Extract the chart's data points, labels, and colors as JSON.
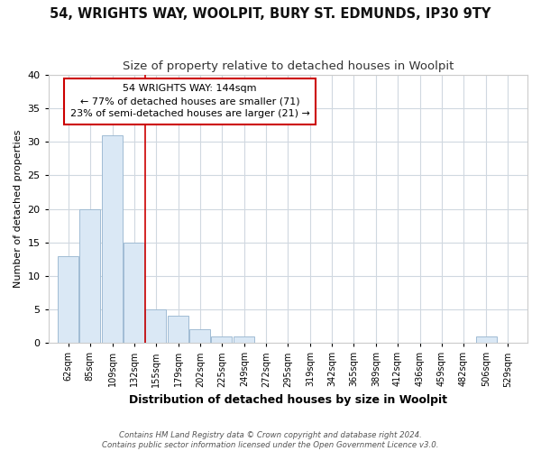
{
  "title": "54, WRIGHTS WAY, WOOLPIT, BURY ST. EDMUNDS, IP30 9TY",
  "subtitle": "Size of property relative to detached houses in Woolpit",
  "xlabel": "Distribution of detached houses by size in Woolpit",
  "ylabel": "Number of detached properties",
  "footer_line1": "Contains HM Land Registry data © Crown copyright and database right 2024.",
  "footer_line2": "Contains public sector information licensed under the Open Government Licence v3.0.",
  "bins": [
    62,
    85,
    109,
    132,
    155,
    179,
    202,
    225,
    249,
    272,
    295,
    319,
    342,
    365,
    389,
    412,
    436,
    459,
    482,
    506,
    529
  ],
  "counts": [
    13,
    20,
    31,
    15,
    5,
    4,
    2,
    1,
    1,
    0,
    0,
    0,
    0,
    0,
    0,
    0,
    0,
    0,
    0,
    1,
    0
  ],
  "bar_color": "#dae8f5",
  "bar_edge_color": "#a0bcd4",
  "vline_x": 144,
  "vline_color": "#cc0000",
  "ylim": [
    0,
    40
  ],
  "annotation_line1": "54 WRIGHTS WAY: 144sqm",
  "annotation_line2": "← 77% of detached houses are smaller (71)",
  "annotation_line3": "23% of semi-detached houses are larger (21) →",
  "annotation_box_color": "#ffffff",
  "annotation_box_edge": "#cc0000",
  "bg_color": "#ffffff",
  "plot_bg_color": "#ffffff",
  "grid_color": "#d0d8e0",
  "title_fontsize": 10.5,
  "subtitle_fontsize": 9.5,
  "yticks": [
    0,
    5,
    10,
    15,
    20,
    25,
    30,
    35,
    40
  ]
}
